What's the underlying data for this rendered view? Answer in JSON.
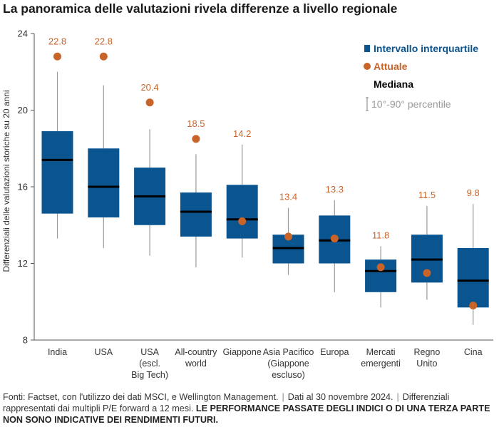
{
  "title": "La panoramica delle valutazioni rivela differenze a livello regionale",
  "colors": {
    "box": "#0a5490",
    "dot": "#c8642a",
    "median": "#000000",
    "whisker": "#9a9a9a",
    "axis": "#555555"
  },
  "chart_data": {
    "type": "boxplot",
    "ylabel": "Differenziali delle valutazioni storiche su 20 anni",
    "ylim": [
      8,
      24
    ],
    "yticks": [
      8,
      12,
      16,
      20,
      24
    ],
    "categories": [
      [
        "India"
      ],
      [
        "USA"
      ],
      [
        "USA",
        "(escl.",
        "Big Tech)"
      ],
      [
        "All-country",
        "world"
      ],
      [
        "Giappone"
      ],
      [
        "Asia Pacifico",
        "(Giappone",
        "escluso)"
      ],
      [
        "Europa"
      ],
      [
        "Mercati",
        "emergenti"
      ],
      [
        "Regno",
        "Unito"
      ],
      [
        "Cina"
      ]
    ],
    "series": [
      {
        "p10": 13.3,
        "q1": 14.6,
        "median": 17.4,
        "q3": 18.9,
        "p90": 22.0,
        "current": 22.8,
        "current_label": "22.8"
      },
      {
        "p10": 12.8,
        "q1": 14.4,
        "median": 16.0,
        "q3": 18.0,
        "p90": 21.3,
        "current": 22.8,
        "current_label": "22.8"
      },
      {
        "p10": 12.4,
        "q1": 14.0,
        "median": 15.5,
        "q3": 17.0,
        "p90": 19.0,
        "current": 20.4,
        "current_label": "20.4"
      },
      {
        "p10": 11.8,
        "q1": 13.4,
        "median": 14.7,
        "q3": 15.7,
        "p90": 17.7,
        "current": 18.5,
        "current_label": "18.5"
      },
      {
        "p10": 12.3,
        "q1": 13.3,
        "median": 14.3,
        "q3": 16.1,
        "p90": 18.2,
        "current": 14.2,
        "current_label": "14.2"
      },
      {
        "p10": 11.4,
        "q1": 12.0,
        "median": 12.8,
        "q3": 13.5,
        "p90": 14.9,
        "current": 13.4,
        "current_label": "13.4"
      },
      {
        "p10": 10.5,
        "q1": 12.0,
        "median": 13.2,
        "q3": 14.5,
        "p90": 15.3,
        "current": 13.3,
        "current_label": "13.3"
      },
      {
        "p10": 9.7,
        "q1": 10.5,
        "median": 11.6,
        "q3": 12.2,
        "p90": 12.9,
        "current": 11.8,
        "current_label": "11.8"
      },
      {
        "p10": 10.1,
        "q1": 11.0,
        "median": 12.2,
        "q3": 13.5,
        "p90": 15.0,
        "current": 11.5,
        "current_label": "11.5"
      },
      {
        "p10": 8.8,
        "q1": 9.7,
        "median": 11.1,
        "q3": 12.8,
        "p90": 15.1,
        "current": 9.8,
        "current_label": "9.8"
      }
    ],
    "legend": {
      "placement": "top-right",
      "box": "Intervallo interquartile",
      "dot": "Attuale",
      "median": "Mediana",
      "whisker": "10°-90° percentile"
    }
  },
  "source": {
    "part1": "Fonti: Factset, con l'utilizzo dei dati MSCI, e Wellington Management.",
    "separator": "|",
    "part2": "Dati al 30 novembre 2024.",
    "part3": "Differenziali rappresentati dai multipli P/E forward a 12 mesi.",
    "disclaimer": "LE PERFORMANCE PASSATE DEGLI INDICI O DI UNA TERZA PARTE NON SONO INDICATIVE DEI RENDIMENTI FUTURI."
  }
}
